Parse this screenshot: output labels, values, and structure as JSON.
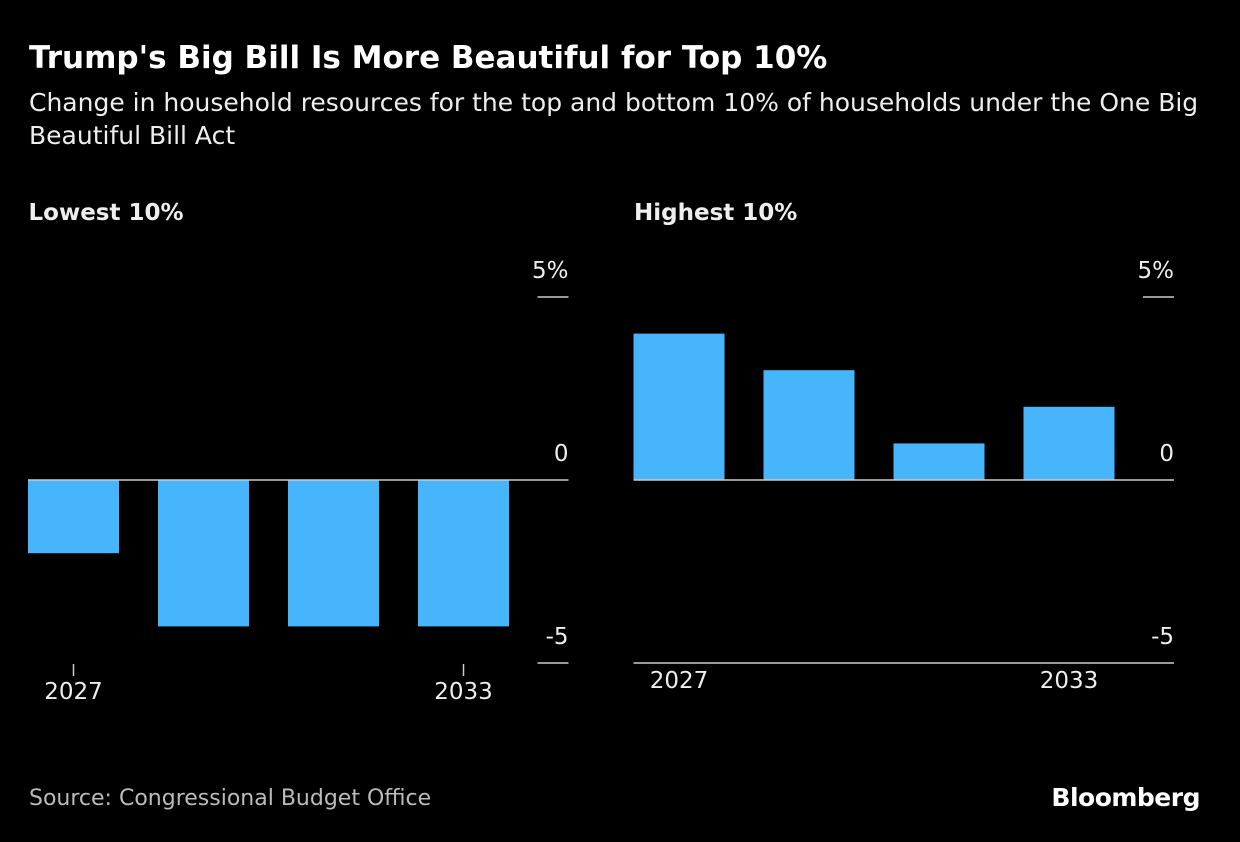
{
  "title": "Trump's Big Bill Is More Beautiful for Top 10%",
  "subtitle": "Change in household resources for the top and bottom 10% of households under the One Big Beautiful Bill Act",
  "source": "Source: Congressional Budget Office",
  "logo": "Bloomberg",
  "chart_data": [
    {
      "type": "bar",
      "title": "Lowest 10%",
      "categories": [
        "2027",
        null,
        null,
        "2033"
      ],
      "values": [
        -2,
        -4,
        -4,
        -4
      ],
      "color": "#47b5fb",
      "ylim": [
        -5,
        5
      ],
      "yticks": [
        {
          "value": 5,
          "label": "5%"
        },
        0,
        -5
      ]
    },
    {
      "type": "bar",
      "title": "Highest 10%",
      "categories": [
        "2027",
        null,
        null,
        "2033"
      ],
      "values": [
        4,
        3,
        1,
        2
      ],
      "color": "#47b5fb",
      "ylim": [
        -5,
        5
      ],
      "yticks": [
        {
          "value": 5,
          "label": "5%"
        },
        0,
        -5
      ]
    }
  ]
}
